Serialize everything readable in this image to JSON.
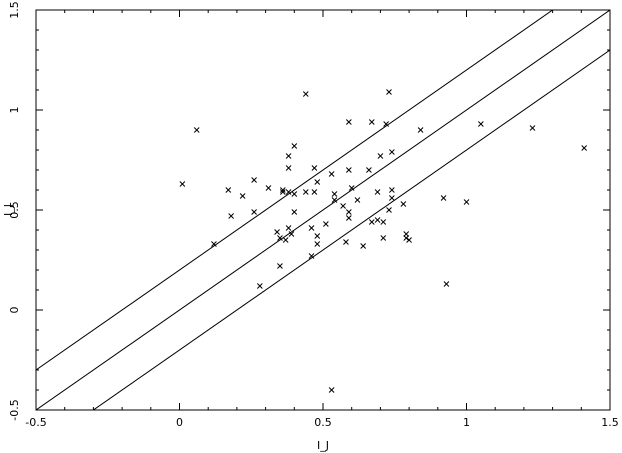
{
  "chart_data": {
    "type": "scatter",
    "title": "",
    "xlabel": "I_J",
    "ylabel": "I_J",
    "xlim": [
      -0.5,
      1.5
    ],
    "ylim": [
      -0.5,
      1.5
    ],
    "xticks": [
      "-0.5",
      "0",
      "0.5",
      "1",
      "1.5"
    ],
    "yticks": [
      "-0.5",
      "0",
      "0.5",
      "1",
      "1.5"
    ],
    "grid": false,
    "marker": "x",
    "reference_lines": [
      {
        "slope": 1,
        "intercept": 0.2
      },
      {
        "slope": 1,
        "intercept": 0.0
      },
      {
        "slope": 1,
        "intercept": -0.2
      }
    ],
    "series": [
      {
        "points": [
          [
            0.01,
            0.63
          ],
          [
            0.06,
            0.9
          ],
          [
            0.12,
            0.33
          ],
          [
            0.17,
            0.6
          ],
          [
            0.18,
            0.47
          ],
          [
            0.22,
            0.57
          ],
          [
            0.26,
            0.49
          ],
          [
            0.26,
            0.65
          ],
          [
            0.28,
            0.12
          ],
          [
            0.31,
            0.61
          ],
          [
            0.34,
            0.39
          ],
          [
            0.35,
            0.22
          ],
          [
            0.35,
            0.36
          ],
          [
            0.36,
            0.59
          ],
          [
            0.36,
            0.6
          ],
          [
            0.37,
            0.35
          ],
          [
            0.38,
            0.41
          ],
          [
            0.38,
            0.59
          ],
          [
            0.38,
            0.71
          ],
          [
            0.38,
            0.77
          ],
          [
            0.39,
            0.38
          ],
          [
            0.4,
            0.49
          ],
          [
            0.4,
            0.58
          ],
          [
            0.4,
            0.82
          ],
          [
            0.44,
            1.08
          ],
          [
            0.44,
            0.59
          ],
          [
            0.46,
            0.41
          ],
          [
            0.46,
            0.27
          ],
          [
            0.47,
            0.71
          ],
          [
            0.47,
            0.59
          ],
          [
            0.48,
            0.64
          ],
          [
            0.48,
            0.37
          ],
          [
            0.48,
            0.33
          ],
          [
            0.51,
            0.43
          ],
          [
            0.53,
            -0.4
          ],
          [
            0.53,
            0.68
          ],
          [
            0.54,
            0.58
          ],
          [
            0.54,
            0.55
          ],
          [
            0.57,
            0.52
          ],
          [
            0.58,
            0.34
          ],
          [
            0.59,
            0.94
          ],
          [
            0.59,
            0.7
          ],
          [
            0.59,
            0.49
          ],
          [
            0.59,
            0.46
          ],
          [
            0.6,
            0.61
          ],
          [
            0.62,
            0.55
          ],
          [
            0.64,
            0.32
          ],
          [
            0.66,
            0.7
          ],
          [
            0.67,
            0.44
          ],
          [
            0.67,
            0.94
          ],
          [
            0.69,
            0.59
          ],
          [
            0.69,
            0.45
          ],
          [
            0.7,
            0.77
          ],
          [
            0.71,
            0.44
          ],
          [
            0.71,
            0.36
          ],
          [
            0.72,
            0.93
          ],
          [
            0.73,
            1.09
          ],
          [
            0.73,
            0.5
          ],
          [
            0.74,
            0.6
          ],
          [
            0.74,
            0.79
          ],
          [
            0.74,
            0.56
          ],
          [
            0.78,
            0.53
          ],
          [
            0.79,
            0.38
          ],
          [
            0.79,
            0.36
          ],
          [
            0.8,
            0.35
          ],
          [
            0.84,
            0.9
          ],
          [
            0.92,
            0.56
          ],
          [
            0.93,
            0.13
          ],
          [
            1.0,
            0.54
          ],
          [
            1.05,
            0.93
          ],
          [
            1.23,
            0.91
          ],
          [
            1.41,
            0.81
          ]
        ]
      }
    ]
  }
}
